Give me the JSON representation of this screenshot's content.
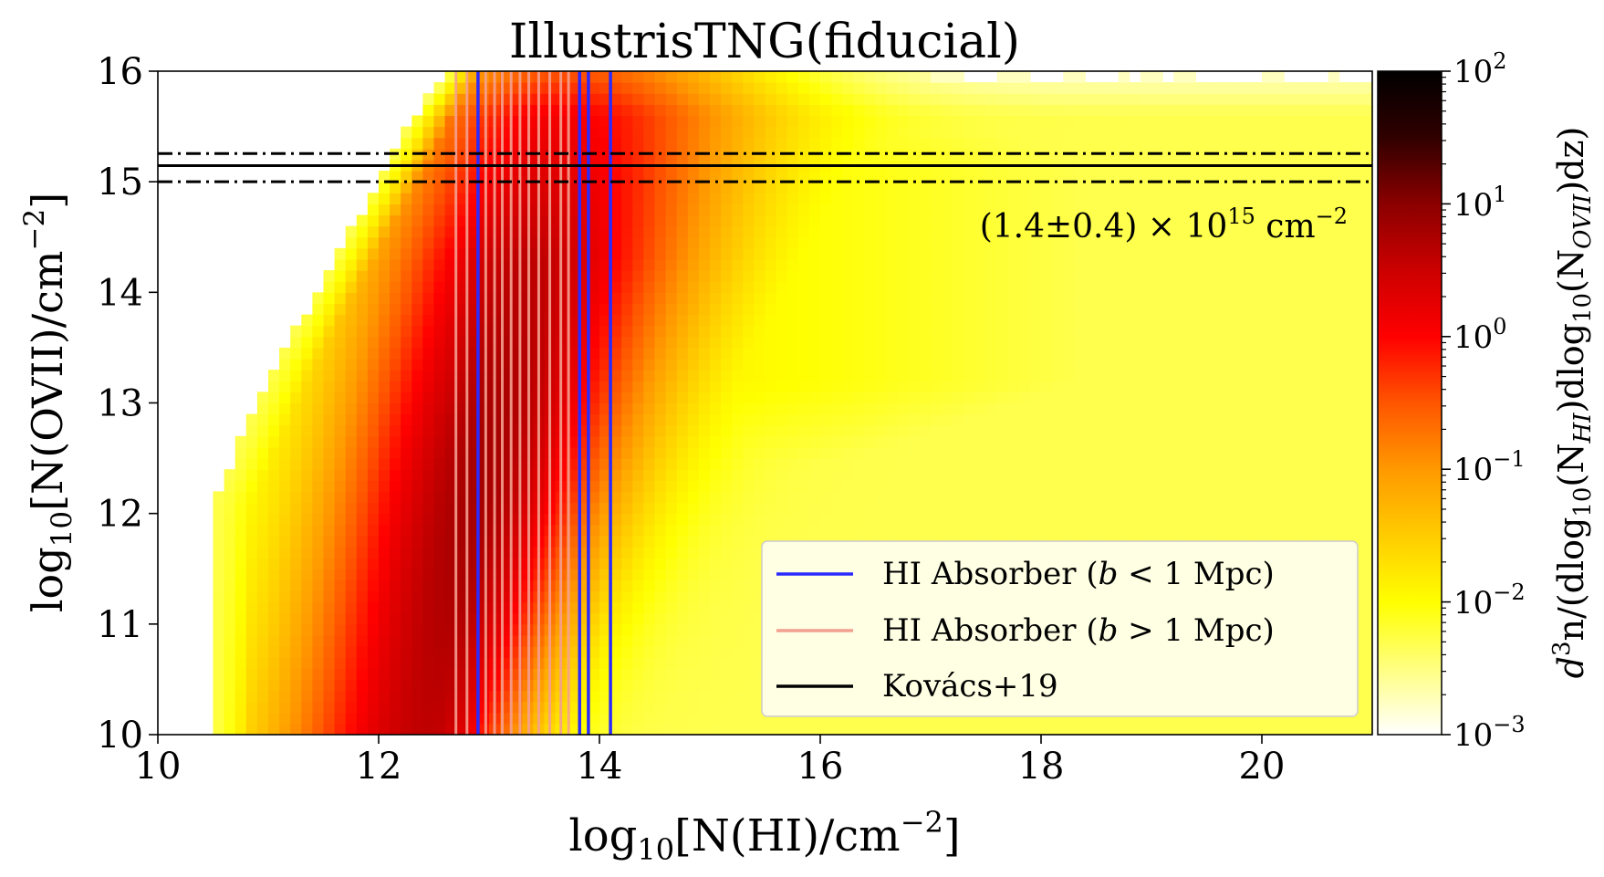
{
  "chart_data": {
    "type": "heatmap",
    "title": "IllustrisTNG(fiducial)",
    "xlabel": {
      "pre": "log",
      "sub": "10",
      "main": "[N(HI)/cm",
      "sup": "−2",
      "post": "]"
    },
    "ylabel": {
      "pre": "log",
      "sub": "10",
      "main": "[N(OVII)/cm",
      "sup": "−2",
      "post": "]"
    },
    "xlim": [
      10,
      21
    ],
    "ylim": [
      10,
      16
    ],
    "xticks": [
      10,
      12,
      14,
      16,
      18,
      20
    ],
    "yticks": [
      10,
      11,
      12,
      13,
      14,
      15,
      16
    ],
    "colorbar": {
      "scale": "log",
      "range": [
        0.001,
        100
      ],
      "ticks": [
        {
          "base": "10",
          "exp": "−3"
        },
        {
          "base": "10",
          "exp": "−2"
        },
        {
          "base": "10",
          "exp": "−1"
        },
        {
          "base": "10",
          "exp": "0"
        },
        {
          "base": "10",
          "exp": "1"
        },
        {
          "base": "10",
          "exp": "2"
        }
      ],
      "label": {
        "a": "d",
        "a_sup": "3",
        "b": "n/(dlog",
        "b_sub": "10",
        "c": "(N",
        "c_sub": "HI",
        "d": ")dlog",
        "d_sub": "10",
        "e": "(N",
        "e_sub": "OVII",
        "f": ")dz)"
      }
    },
    "colormap": [
      "#ffffff",
      "#ffff80",
      "#ffff00",
      "#ffcc00",
      "#ff9900",
      "#ff5500",
      "#ff0000",
      "#cc0000",
      "#8b0000",
      "#300000",
      "#000000"
    ],
    "hi_absorbers_small_b": {
      "name": "HI Absorber (b < 1 Mpc)",
      "color": "#2a2aff",
      "x": [
        12.9,
        13.82,
        13.9,
        14.1
      ]
    },
    "hi_absorbers_large_b": {
      "name": "HI Absorber (b > 1 Mpc)",
      "color": "#f4a090",
      "x": [
        12.7,
        12.8,
        12.97,
        13.05,
        13.12,
        13.2,
        13.28,
        13.36,
        13.45,
        13.55,
        13.65,
        13.72
      ]
    },
    "kovacs19": {
      "name": "Kovács+19",
      "color": "#000000",
      "value": 15.146,
      "lower": 15.0,
      "upper": 15.255
    },
    "annotation": {
      "text": "(1.4±0.4) × 10",
      "sup": "15",
      "unit": " cm",
      "unit_sup": "−2"
    },
    "legend": {
      "position": "lower-right",
      "entries": [
        {
          "pre": "HI Absorber (",
          "it": "b",
          "post": " < 1 Mpc)",
          "color": "#2a2aff"
        },
        {
          "pre": "HI Absorber (",
          "it": "b",
          "post": " > 1 Mpc)",
          "color": "#f4a090"
        },
        {
          "pre": "Kovács+19",
          "it": "",
          "post": "",
          "color": "#000000"
        }
      ]
    }
  }
}
